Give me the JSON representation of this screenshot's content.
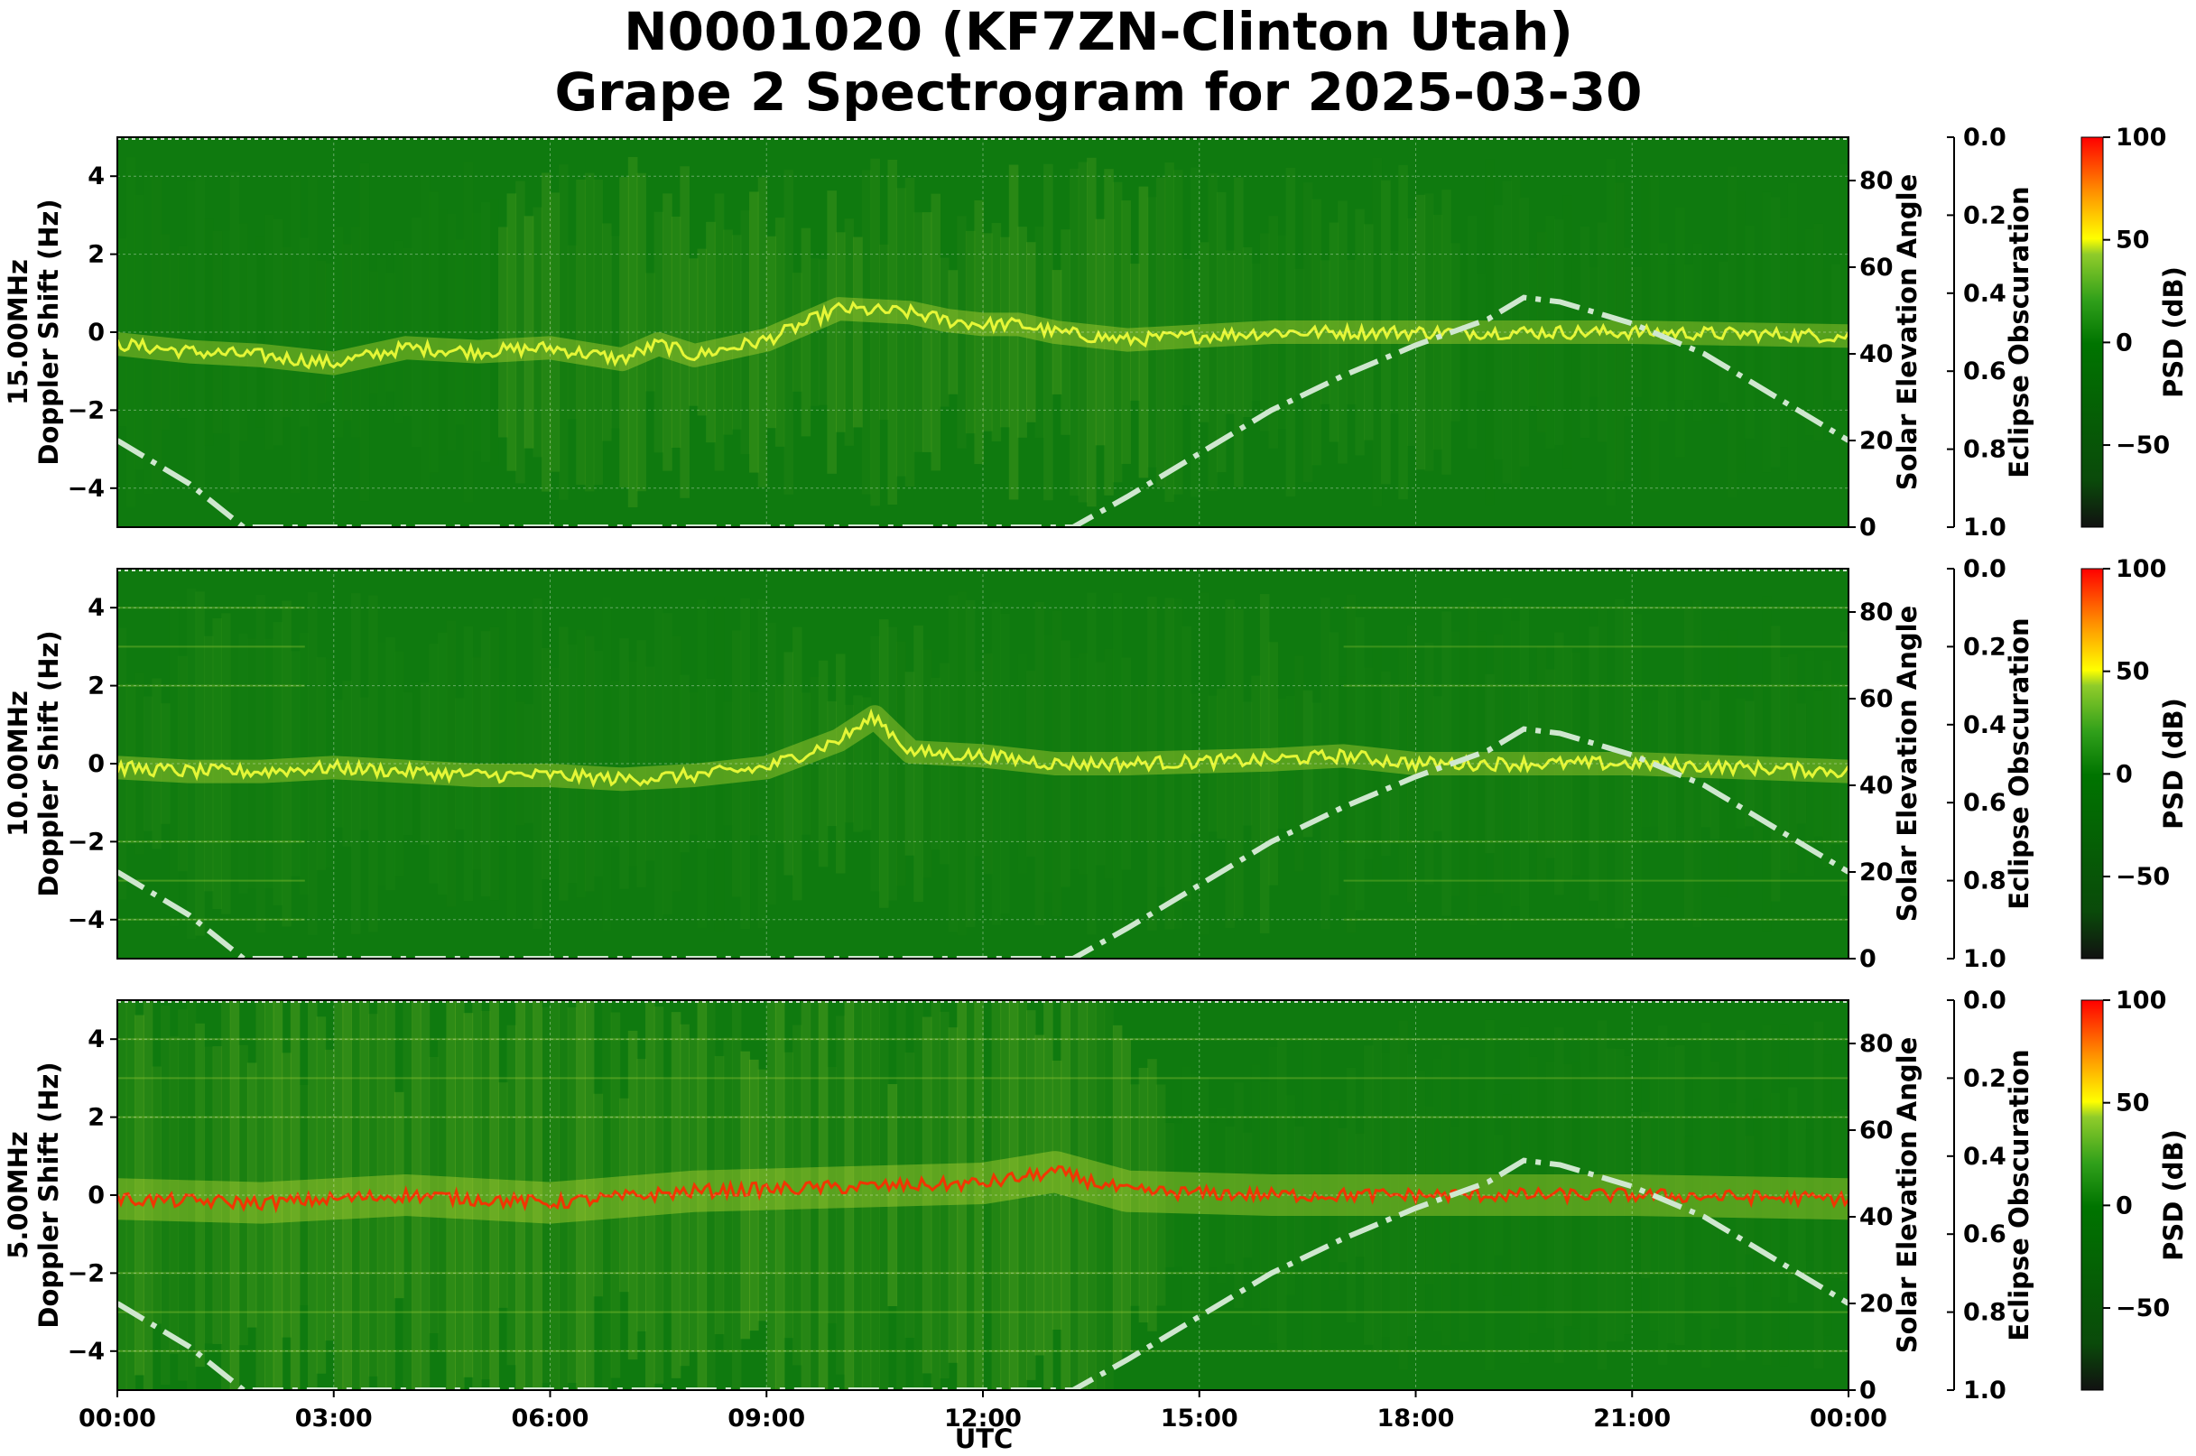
{
  "chart_data": {
    "type": "heatmap",
    "title": [
      "N0001020 (KF7ZN-Clinton Utah)",
      "Grape 2 Spectrogram for 2025-03-30"
    ],
    "xlabel": "UTC",
    "x_ticks": [
      "00:00",
      "03:00",
      "06:00",
      "09:00",
      "12:00",
      "15:00",
      "18:00",
      "21:00",
      "00:00"
    ],
    "xlim_hours": [
      0,
      24
    ],
    "panels": [
      {
        "frequency_label": "15.00MHz",
        "ylabel": "Doppler Shift (Hz)",
        "ylim": [
          -5,
          5
        ],
        "y_ticks": [
          4,
          2,
          0,
          -2,
          -4
        ],
        "doppler_trace": [
          [
            0,
            -0.3
          ],
          [
            1,
            -0.5
          ],
          [
            2,
            -0.6
          ],
          [
            3,
            -0.8
          ],
          [
            4,
            -0.4
          ],
          [
            5,
            -0.5
          ],
          [
            6,
            -0.4
          ],
          [
            7,
            -0.7
          ],
          [
            7.5,
            -0.3
          ],
          [
            8,
            -0.6
          ],
          [
            9,
            -0.2
          ],
          [
            10,
            0.6
          ],
          [
            11,
            0.5
          ],
          [
            11.5,
            0.3
          ],
          [
            12,
            0.2
          ],
          [
            12.5,
            0.2
          ],
          [
            13,
            0.0
          ],
          [
            14,
            -0.2
          ],
          [
            15,
            -0.1
          ],
          [
            16,
            0.0
          ],
          [
            18,
            0.0
          ],
          [
            21,
            0.0
          ],
          [
            24,
            -0.1
          ]
        ],
        "psd_range_db": [
          -90,
          100
        ]
      },
      {
        "frequency_label": "10.00MHz",
        "ylabel": "Doppler Shift (Hz)",
        "ylim": [
          -5,
          5
        ],
        "y_ticks": [
          4,
          2,
          0,
          -2,
          -4
        ],
        "doppler_trace": [
          [
            0,
            -0.1
          ],
          [
            1,
            -0.2
          ],
          [
            2,
            -0.2
          ],
          [
            3,
            -0.1
          ],
          [
            4,
            -0.2
          ],
          [
            5,
            -0.3
          ],
          [
            6,
            -0.3
          ],
          [
            7,
            -0.4
          ],
          [
            8,
            -0.3
          ],
          [
            9,
            -0.1
          ],
          [
            10,
            0.6
          ],
          [
            10.5,
            1.2
          ],
          [
            11,
            0.3
          ],
          [
            12,
            0.2
          ],
          [
            13,
            0.0
          ],
          [
            14,
            0.0
          ],
          [
            16,
            0.1
          ],
          [
            17,
            0.2
          ],
          [
            18,
            0.0
          ],
          [
            21,
            0.0
          ],
          [
            24,
            -0.2
          ]
        ],
        "psd_range_db": [
          -90,
          100
        ]
      },
      {
        "frequency_label": "5.00MHz",
        "ylabel": "Doppler Shift (Hz)",
        "ylim": [
          -5,
          5
        ],
        "y_ticks": [
          4,
          2,
          0,
          -2,
          -4
        ],
        "doppler_trace": [
          [
            0,
            -0.1
          ],
          [
            2,
            -0.2
          ],
          [
            4,
            0.0
          ],
          [
            6,
            -0.2
          ],
          [
            8,
            0.1
          ],
          [
            10,
            0.2
          ],
          [
            12,
            0.3
          ],
          [
            13,
            0.6
          ],
          [
            14,
            0.1
          ],
          [
            16,
            0.0
          ],
          [
            18,
            0.0
          ],
          [
            21,
            0.0
          ],
          [
            24,
            -0.1
          ]
        ],
        "psd_range_db": [
          -90,
          100
        ]
      }
    ],
    "solar_elevation": {
      "label": "Solar Elevation Angle",
      "ylim": [
        0,
        90
      ],
      "y_ticks": [
        0,
        20,
        40,
        60,
        80
      ],
      "points": [
        [
          0,
          20
        ],
        [
          1,
          10
        ],
        [
          1.75,
          0
        ],
        [
          13.25,
          0
        ],
        [
          14,
          7
        ],
        [
          15,
          17
        ],
        [
          16,
          27
        ],
        [
          17,
          35
        ],
        [
          18,
          42
        ],
        [
          19,
          48
        ],
        [
          19.5,
          53
        ],
        [
          20,
          52
        ],
        [
          21,
          47
        ],
        [
          22,
          40
        ],
        [
          23,
          30
        ],
        [
          24,
          20
        ]
      ]
    },
    "eclipse_obscuration": {
      "label": "Eclipse Obscuration",
      "ylim": [
        1.0,
        0.0
      ],
      "y_ticks": [
        "0.0",
        "0.2",
        "0.4",
        "0.6",
        "0.8",
        "1.0"
      ]
    },
    "colorbar": {
      "label": "PSD (dB)",
      "ticks": [
        100,
        50,
        0,
        -50
      ],
      "tick_labels": [
        "100",
        "50",
        "0",
        "−50"
      ],
      "range": [
        -90,
        100
      ],
      "colors": [
        "#111111",
        "#0a4a0a",
        "#007400",
        "#2f9f1a",
        "#90cc2a",
        "#ffff00",
        "#ff9000",
        "#ff0000"
      ]
    },
    "grid": true
  },
  "colors": {
    "background_green": "#0f7a0f",
    "signal_yellow": "#d8e83a",
    "peak_red": "#ff2a00",
    "solar_curve": "#cfe7cf"
  }
}
